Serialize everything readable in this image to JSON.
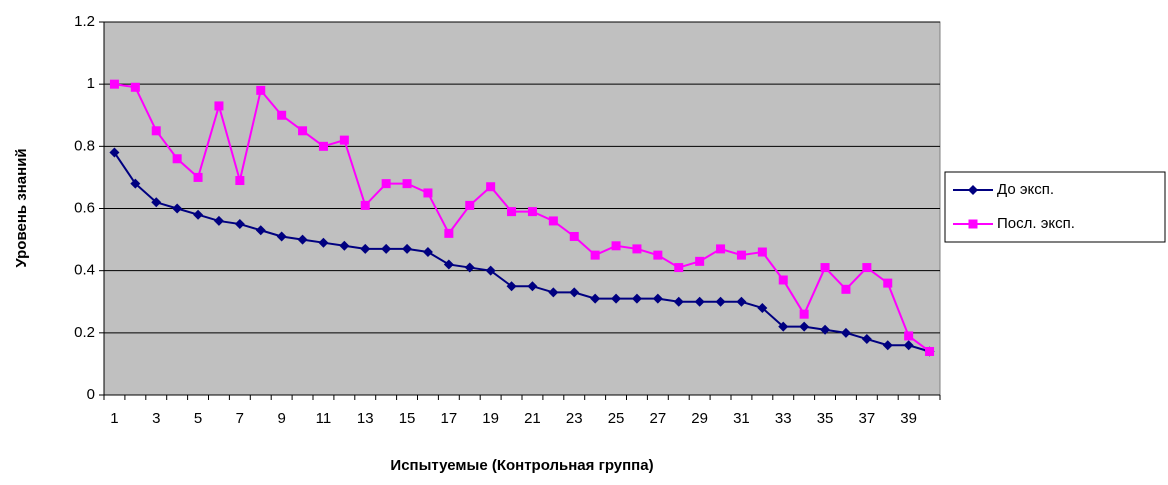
{
  "chart_data": {
    "type": "line",
    "x_label": "Испытуемые (Контрольная группа)",
    "y_label": "Уровень знаний",
    "categories": [
      1,
      null,
      3,
      null,
      5,
      null,
      7,
      null,
      9,
      null,
      11,
      null,
      13,
      null,
      15,
      null,
      17,
      null,
      19,
      null,
      21,
      null,
      23,
      null,
      25,
      null,
      27,
      null,
      29,
      null,
      31,
      null,
      33,
      null,
      35,
      null,
      37,
      null,
      39,
      null
    ],
    "series": [
      {
        "name": "До эксп.",
        "color": "#000080",
        "marker": "diamond",
        "values": [
          0.78,
          0.68,
          0.62,
          0.6,
          0.58,
          0.56,
          0.55,
          0.53,
          0.51,
          0.5,
          0.49,
          0.48,
          0.47,
          0.47,
          0.47,
          0.46,
          0.42,
          0.41,
          0.4,
          0.35,
          0.35,
          0.33,
          0.33,
          0.31,
          0.31,
          0.31,
          0.31,
          0.3,
          0.3,
          0.3,
          0.3,
          0.28,
          0.22,
          0.22,
          0.21,
          0.2,
          0.18,
          0.16,
          0.16,
          0.14
        ]
      },
      {
        "name": "Посл. эксп.",
        "color": "#ff00ff",
        "marker": "square",
        "values": [
          1.0,
          0.99,
          0.85,
          0.76,
          0.7,
          0.93,
          0.69,
          0.98,
          0.9,
          0.85,
          0.8,
          0.82,
          0.61,
          0.68,
          0.68,
          0.65,
          0.52,
          0.61,
          0.67,
          0.59,
          0.59,
          0.56,
          0.51,
          0.45,
          0.48,
          0.47,
          0.45,
          0.41,
          0.43,
          0.47,
          0.45,
          0.46,
          0.37,
          0.26,
          0.41,
          0.34,
          0.41,
          0.36,
          0.19,
          0.14
        ]
      }
    ],
    "ylim": [
      0,
      1.2
    ],
    "yticks": [
      0,
      0.2,
      0.4,
      0.6,
      0.8,
      1,
      1.2
    ],
    "grid": true,
    "legend": "right",
    "plot_background": "#c0c0c0"
  }
}
